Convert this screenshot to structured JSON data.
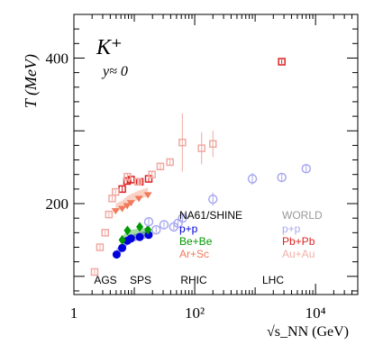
{
  "chart_data": {
    "type": "scatter",
    "x_scale": "log",
    "xlim": [
      1,
      50000
    ],
    "ylim": [
      75,
      460
    ],
    "xlabel": "√s_NN (GeV)",
    "ylabel": "T (MeV)",
    "x_ticks": [
      {
        "value": 1,
        "label": "1"
      },
      {
        "value": 100,
        "label": "10²"
      },
      {
        "value": 10000,
        "label": "10⁴"
      }
    ],
    "y_ticks": [
      {
        "value": 200,
        "label": "200"
      },
      {
        "value": 400,
        "label": "400"
      }
    ],
    "annotations": {
      "particle": "K⁺",
      "rapidity": "y≈ 0",
      "energy_regions": [
        "AGS",
        "SPS",
        "RHIC",
        "LHC"
      ]
    },
    "legend": {
      "placement": "inside-bottom-right",
      "left_title": "NA61/SHINE",
      "right_title": "WORLD",
      "entries": [
        {
          "label": "p+p",
          "column": "NA61/SHINE",
          "color": "#0000dd"
        },
        {
          "label": "Be+Be",
          "column": "NA61/SHINE",
          "color": "#009900"
        },
        {
          "label": "Ar+Sc",
          "column": "NA61/SHINE",
          "color": "#f07a5a"
        },
        {
          "label": "p+p",
          "column": "WORLD",
          "color": "#a8a8f0"
        },
        {
          "label": "Pb+Pb",
          "column": "WORLD",
          "color": "#dd2222"
        },
        {
          "label": "Au+Au",
          "column": "WORLD",
          "color": "#f0b0a8"
        }
      ]
    },
    "series": [
      {
        "name": "NA61/SHINE p+p",
        "marker": "filled-circle",
        "color": "#0000dd",
        "band": [
          [
            5.1,
            126,
            138
          ],
          [
            6.3,
            134,
            146
          ],
          [
            7.7,
            143,
            153
          ],
          [
            8.8,
            147,
            157
          ],
          [
            12.3,
            150,
            160
          ],
          [
            17.3,
            153,
            164
          ]
        ],
        "points": [
          [
            5.1,
            130
          ],
          [
            6.3,
            139
          ],
          [
            7.7,
            149
          ],
          [
            8.8,
            152
          ],
          [
            12.3,
            154
          ],
          [
            17.3,
            157
          ]
        ]
      },
      {
        "name": "NA61/SHINE Be+Be",
        "marker": "filled-diamond",
        "color": "#009900",
        "band": [
          [
            6.3,
            143,
            155
          ],
          [
            7.7,
            150,
            163
          ],
          [
            12.3,
            154,
            166
          ],
          [
            16.8,
            155,
            167
          ]
        ],
        "points": [
          [
            6.3,
            150
          ],
          [
            7.7,
            163
          ],
          [
            12.3,
            168
          ],
          [
            16.8,
            164
          ]
        ]
      },
      {
        "name": "NA61/SHINE Ar+Sc",
        "marker": "filled-triangle-down",
        "color": "#f07a5a",
        "band": [
          [
            4.9,
            188,
            200
          ],
          [
            6.3,
            192,
            204
          ],
          [
            7.6,
            197,
            210
          ],
          [
            8.8,
            201,
            213
          ],
          [
            11.9,
            206,
            218
          ],
          [
            16.8,
            210,
            222
          ]
        ],
        "points": [
          [
            4.9,
            190
          ],
          [
            6.3,
            193
          ],
          [
            7.6,
            197
          ],
          [
            8.8,
            201
          ],
          [
            11.9,
            207
          ],
          [
            16.8,
            212
          ]
        ]
      },
      {
        "name": "WORLD p+p",
        "marker": "open-circle",
        "color": "#a8a8f0",
        "points": [
          [
            17.3,
            175,
            6
          ],
          [
            23,
            164,
            4
          ],
          [
            31,
            171,
            4
          ],
          [
            45,
            168,
            4
          ],
          [
            53,
            173,
            5
          ],
          [
            63,
            180,
            6
          ],
          [
            200,
            206,
            9
          ],
          [
            900,
            234,
            8
          ],
          [
            2760,
            236,
            6
          ],
          [
            7000,
            248,
            5
          ]
        ]
      },
      {
        "name": "WORLD Pb+Pb",
        "marker": "open-square",
        "color": "#dd2222",
        "points": [
          [
            6.3,
            220,
            4
          ],
          [
            7.6,
            231,
            5
          ],
          [
            8.8,
            233,
            4
          ],
          [
            12.3,
            230,
            4
          ],
          [
            17.3,
            234,
            4
          ],
          [
            2760,
            395,
            3
          ]
        ]
      },
      {
        "name": "WORLD Au+Au",
        "marker": "open-square",
        "color": "#f0a8a0",
        "points": [
          [
            2.2,
            106,
            3
          ],
          [
            2.7,
            140,
            3
          ],
          [
            3.3,
            160,
            3
          ],
          [
            3.8,
            185,
            3
          ],
          [
            4.3,
            207,
            3
          ],
          [
            4.9,
            216,
            3
          ],
          [
            7.7,
            237,
            4
          ],
          [
            11.5,
            230,
            4
          ],
          [
            19.6,
            240,
            5
          ],
          [
            27,
            251,
            5
          ],
          [
            39,
            257,
            5
          ],
          [
            62.4,
            284,
            40
          ],
          [
            130,
            276,
            22
          ],
          [
            200,
            282,
            18
          ]
        ]
      }
    ]
  }
}
